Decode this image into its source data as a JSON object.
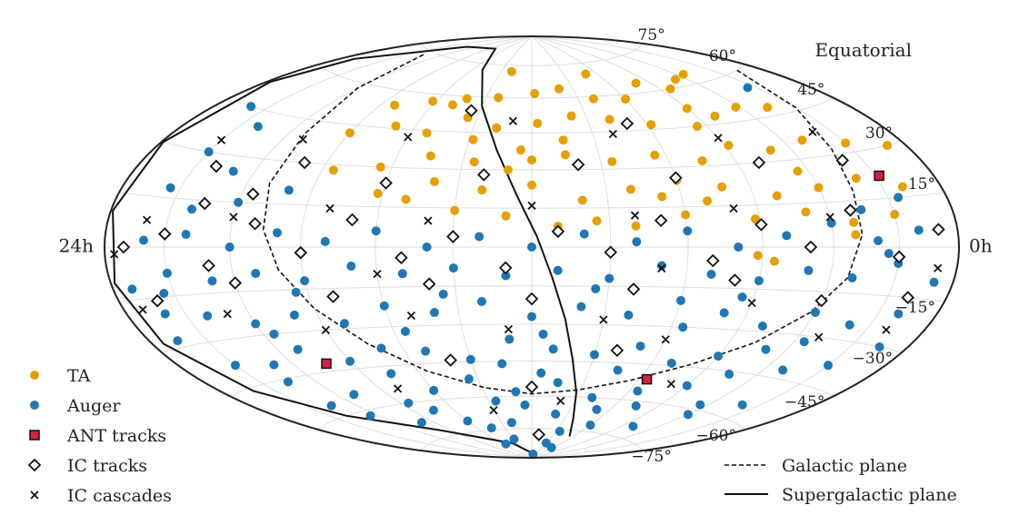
{
  "chart_data": {
    "type": "scatter",
    "projection": "hammer-aitoff",
    "coordinate_system": "Equatorial",
    "ra_labels": {
      "left": "24h",
      "right": "0h"
    },
    "dec_labels": [
      {
        "dec": 75,
        "text": "75°"
      },
      {
        "dec": 60,
        "text": "60°"
      },
      {
        "dec": 45,
        "text": "45°"
      },
      {
        "dec": 30,
        "text": "30°"
      },
      {
        "dec": 15,
        "text": "15°"
      },
      {
        "dec": -15,
        "text": "−15°"
      },
      {
        "dec": -30,
        "text": "−30°"
      },
      {
        "dec": -45,
        "text": "−45°"
      },
      {
        "dec": -60,
        "text": "−60°"
      },
      {
        "dec": -75,
        "text": "−75°"
      }
    ],
    "grid": true,
    "x_range": [
      -180,
      180
    ],
    "y_range": [
      -90,
      90
    ],
    "colors": {
      "ta": "#e69f00",
      "auger": "#1f77b4",
      "ant": "#d62040"
    },
    "legend_left": [
      {
        "key": "ta",
        "label": "TA",
        "marker": "circle"
      },
      {
        "key": "auger",
        "label": "Auger",
        "marker": "circle"
      },
      {
        "key": "ant",
        "label": "ANT tracks",
        "marker": "square"
      },
      {
        "key": "ic_tracks",
        "label": "IC tracks",
        "marker": "diamond"
      },
      {
        "key": "ic_cascades",
        "label": "IC cascades",
        "marker": "x"
      }
    ],
    "legend_right": [
      {
        "key": "galactic",
        "label": "Galactic plane",
        "style": "dashed"
      },
      {
        "key": "supergalactic",
        "label": "Supergalactic plane",
        "style": "solid"
      }
    ],
    "series": {
      "ta": [
        [
          -125,
          64
        ],
        [
          -112,
          63
        ],
        [
          -97,
          60
        ],
        [
          -80,
          64
        ],
        [
          -60,
          58
        ],
        [
          -40,
          59
        ],
        [
          -20,
          64
        ],
        [
          -2,
          62
        ],
        [
          22,
          60
        ],
        [
          42,
          59
        ],
        [
          62,
          57
        ],
        [
          82,
          54
        ],
        [
          -135,
          48
        ],
        [
          -118,
          50
        ],
        [
          -100,
          48
        ],
        [
          -85,
          45
        ],
        [
          -62,
          47
        ],
        [
          -42,
          50
        ],
        [
          -22,
          52
        ],
        [
          -3,
          49
        ],
        [
          18,
          47
        ],
        [
          35,
          51
        ],
        [
          52,
          44
        ],
        [
          70,
          46
        ],
        [
          90,
          42
        ],
        [
          -150,
          33
        ],
        [
          -130,
          36
        ],
        [
          -110,
          34
        ],
        [
          -92,
          37
        ],
        [
          -75,
          32
        ],
        [
          -55,
          35
        ],
        [
          -35,
          33
        ],
        [
          -15,
          36
        ],
        [
          5,
          38
        ],
        [
          25,
          33
        ],
        [
          45,
          35
        ],
        [
          65,
          30
        ],
        [
          85,
          28
        ],
        [
          -160,
          18
        ],
        [
          -140,
          22
        ],
        [
          -120,
          20
        ],
        [
          -100,
          18
        ],
        [
          -78,
          22
        ],
        [
          -60,
          25
        ],
        [
          -40,
          22
        ],
        [
          -20,
          18
        ],
        [
          0,
          24
        ],
        [
          20,
          22
        ],
        [
          40,
          25
        ],
        [
          62,
          20
        ],
        [
          -150,
          10
        ],
        [
          -130,
          8
        ],
        [
          -110,
          12
        ],
        [
          -88,
          10
        ],
        [
          -60,
          12
        ],
        [
          -40,
          8
        ],
        [
          -25,
          10
        ],
        [
          -10,
          8
        ],
        [
          10,
          12
        ],
        [
          30,
          14
        ],
        [
          50,
          18
        ],
        [
          -170,
          30
        ],
        [
          -95,
          -5
        ],
        [
          -88,
          -3
        ],
        [
          -130,
          4
        ],
        [
          -115,
          26
        ],
        [
          -70,
          17
        ],
        [
          -52,
          19
        ],
        [
          10,
          30
        ],
        [
          28,
          42
        ],
        [
          48,
          56
        ],
        [
          -15,
          42
        ],
        [
          0,
          34
        ],
        [
          -90,
          52
        ],
        [
          -50,
          70
        ],
        [
          20,
          72
        ]
      ],
      "auger": [
        [
          -150,
          -5
        ],
        [
          -130,
          -10
        ],
        [
          -110,
          -8
        ],
        [
          -90,
          -12
        ],
        [
          -70,
          -10
        ],
        [
          -50,
          -7
        ],
        [
          -30,
          -12
        ],
        [
          -10,
          -9
        ],
        [
          10,
          -11
        ],
        [
          30,
          -8
        ],
        [
          50,
          -10
        ],
        [
          70,
          -7
        ],
        [
          90,
          -12
        ],
        [
          110,
          -9
        ],
        [
          130,
          -11
        ],
        [
          150,
          -8
        ],
        [
          -160,
          -20
        ],
        [
          -140,
          -25
        ],
        [
          -120,
          -22
        ],
        [
          -100,
          -28
        ],
        [
          -80,
          -24
        ],
        [
          -60,
          -20
        ],
        [
          -40,
          -26
        ],
        [
          -20,
          -23
        ],
        [
          0,
          -27
        ],
        [
          20,
          -21
        ],
        [
          40,
          -25
        ],
        [
          60,
          -22
        ],
        [
          80,
          -28
        ],
        [
          100,
          -24
        ],
        [
          120,
          -26
        ],
        [
          140,
          -22
        ],
        [
          160,
          -20
        ],
        [
          -150,
          -38
        ],
        [
          -130,
          -42
        ],
        [
          -110,
          -36
        ],
        [
          -90,
          -40
        ],
        [
          -70,
          -44
        ],
        [
          -50,
          -38
        ],
        [
          -30,
          -42
        ],
        [
          -10,
          -40
        ],
        [
          10,
          -36
        ],
        [
          30,
          -44
        ],
        [
          50,
          -40
        ],
        [
          70,
          -38
        ],
        [
          90,
          -42
        ],
        [
          110,
          -36
        ],
        [
          130,
          -40
        ],
        [
          150,
          -38
        ],
        [
          -140,
          -55
        ],
        [
          -115,
          -58
        ],
        [
          -90,
          -52
        ],
        [
          -65,
          -56
        ],
        [
          -40,
          -60
        ],
        [
          -15,
          -54
        ],
        [
          10,
          -58
        ],
        [
          35,
          -52
        ],
        [
          60,
          -56
        ],
        [
          85,
          -60
        ],
        [
          110,
          -54
        ],
        [
          135,
          -56
        ],
        [
          -100,
          -70
        ],
        [
          -60,
          -72
        ],
        [
          -20,
          -68
        ],
        [
          20,
          -72
        ],
        [
          60,
          -70
        ],
        [
          100,
          -68
        ],
        [
          -30,
          -82
        ],
        [
          30,
          -80
        ],
        [
          -160,
          5
        ],
        [
          -140,
          2
        ],
        [
          -120,
          8
        ],
        [
          -100,
          4
        ],
        [
          -80,
          0
        ],
        [
          -60,
          6
        ],
        [
          -40,
          2
        ],
        [
          -20,
          5
        ],
        [
          0,
          0
        ],
        [
          20,
          4
        ],
        [
          40,
          0
        ],
        [
          60,
          6
        ],
        [
          80,
          2
        ],
        [
          100,
          5
        ],
        [
          120,
          0
        ],
        [
          140,
          4
        ],
        [
          160,
          2
        ],
        [
          -155,
          15
        ],
        [
          -135,
          12
        ],
        [
          120,
          15
        ],
        [
          140,
          12
        ],
        [
          155,
          18
        ],
        [
          100,
          20
        ],
        [
          130,
          25
        ],
        [
          150,
          30
        ],
        [
          -145,
          -2
        ],
        [
          -125,
          -32
        ],
        [
          -105,
          -46
        ],
        [
          -85,
          -18
        ],
        [
          -65,
          -30
        ],
        [
          -45,
          -48
        ],
        [
          -25,
          -16
        ],
        [
          -5,
          -34
        ],
        [
          15,
          -46
        ],
        [
          35,
          -18
        ],
        [
          55,
          -32
        ],
        [
          75,
          -48
        ],
        [
          95,
          -16
        ],
        [
          115,
          -30
        ],
        [
          135,
          -46
        ],
        [
          155,
          -14
        ],
        [
          -75,
          -62
        ],
        [
          -35,
          -76
        ],
        [
          5,
          -64
        ],
        [
          45,
          -74
        ],
        [
          75,
          -64
        ],
        [
          -170,
          -10
        ],
        [
          170,
          -12
        ],
        [
          -165,
          -30
        ],
        [
          165,
          -28
        ],
        [
          -120,
          -62
        ],
        [
          125,
          -62
        ],
        [
          -55,
          -84
        ],
        [
          55,
          -82
        ],
        [
          -10,
          -88
        ],
        [
          140,
          40
        ],
        [
          160,
          45
        ],
        [
          -145,
          55
        ],
        [
          -5,
          -50
        ],
        [
          25,
          -62
        ],
        [
          -50,
          -65
        ]
      ],
      "ant": [
        [
          -152,
          22
        ],
        [
          -64,
          -51
        ],
        [
          103,
          -42
        ]
      ],
      "ic_tracks": [
        [
          -170,
          5
        ],
        [
          -150,
          -3
        ],
        [
          -130,
          12
        ],
        [
          -110,
          0
        ],
        [
          -90,
          8
        ],
        [
          -70,
          -5
        ],
        [
          -50,
          10
        ],
        [
          -30,
          -2
        ],
        [
          -10,
          6
        ],
        [
          10,
          -8
        ],
        [
          30,
          4
        ],
        [
          50,
          -4
        ],
        [
          70,
          10
        ],
        [
          90,
          -2
        ],
        [
          110,
          8
        ],
        [
          130,
          -6
        ],
        [
          150,
          4
        ],
        [
          170,
          0
        ],
        [
          -160,
          -15
        ],
        [
          -120,
          -18
        ],
        [
          -80,
          -12
        ],
        [
          -40,
          -16
        ],
        [
          0,
          -20
        ],
        [
          40,
          -14
        ],
        [
          80,
          -18
        ],
        [
          120,
          -12
        ],
        [
          160,
          -16
        ],
        [
          -140,
          28
        ],
        [
          -100,
          30
        ],
        [
          -60,
          26
        ],
        [
          -20,
          32
        ],
        [
          20,
          28
        ],
        [
          60,
          24
        ],
        [
          100,
          30
        ],
        [
          140,
          26
        ],
        [
          -40,
          -40
        ],
        [
          0,
          -56
        ],
        [
          40,
          -44
        ],
        [
          -10,
          -78
        ],
        [
          -50,
          48
        ],
        [
          35,
          54
        ],
        [
          115,
          18
        ],
        [
          135,
          14
        ]
      ],
      "ic_cascades": [
        [
          -160,
          -25
        ],
        [
          -130,
          -30
        ],
        [
          -90,
          -20
        ],
        [
          -60,
          -35
        ],
        [
          -30,
          -28
        ],
        [
          10,
          -32
        ],
        [
          50,
          -26
        ],
        [
          90,
          -30
        ],
        [
          130,
          -22
        ],
        [
          170,
          -18
        ],
        [
          -140,
          38
        ],
        [
          -90,
          40
        ],
        [
          -40,
          44
        ],
        [
          10,
          50
        ],
        [
          60,
          42
        ],
        [
          110,
          38
        ],
        [
          150,
          34
        ],
        [
          -120,
          10
        ],
        [
          -80,
          14
        ],
        [
          -40,
          12
        ],
        [
          0,
          16
        ],
        [
          40,
          10
        ],
        [
          80,
          14
        ],
        [
          120,
          10
        ],
        [
          160,
          8
        ],
        [
          -80,
          -52
        ],
        [
          -20,
          -62
        ],
        [
          30,
          -66
        ],
        [
          80,
          -54
        ],
        [
          -50,
          -8
        ],
        [
          60,
          -10
        ],
        [
          -170,
          -6
        ],
        [
          175,
          -2
        ]
      ]
    },
    "galactic_plane_points": [
      [
        -165,
        60
      ],
      [
        -150,
        46
      ],
      [
        -140,
        32
      ],
      [
        -135,
        18
      ],
      [
        -133,
        4
      ],
      [
        -128,
        -10
      ],
      [
        -118,
        -22
      ],
      [
        -102,
        -34
      ],
      [
        -80,
        -44
      ],
      [
        -55,
        -52
      ],
      [
        -28,
        -57
      ],
      [
        0,
        -59
      ],
      [
        28,
        -56
      ],
      [
        55,
        -48
      ],
      [
        75,
        -36
      ],
      [
        90,
        -22
      ],
      [
        100,
        -8
      ],
      [
        106,
        6
      ],
      [
        110,
        22
      ],
      [
        112,
        40
      ],
      [
        120,
        58
      ],
      [
        140,
        74
      ]
    ],
    "supergalactic_plane_points": [
      [
        -55,
        -78
      ],
      [
        -38,
        -70
      ],
      [
        -28,
        -58
      ],
      [
        -20,
        -44
      ],
      [
        -14,
        -28
      ],
      [
        -8,
        -12
      ],
      [
        -2,
        4
      ],
      [
        6,
        20
      ],
      [
        16,
        38
      ],
      [
        30,
        56
      ],
      [
        50,
        72
      ],
      [
        80,
        82
      ],
      [
        130,
        80
      ],
      [
        172,
        65
      ],
      [
        178,
        52
      ],
      [
        179,
        30
      ],
      [
        179,
        10
      ],
      [
        178,
        -10
      ],
      [
        174,
        -28
      ],
      [
        162,
        -46
      ],
      [
        140,
        -60
      ],
      [
        100,
        -72
      ],
      [
        40,
        -82
      ],
      [
        -20,
        -88
      ]
    ]
  }
}
